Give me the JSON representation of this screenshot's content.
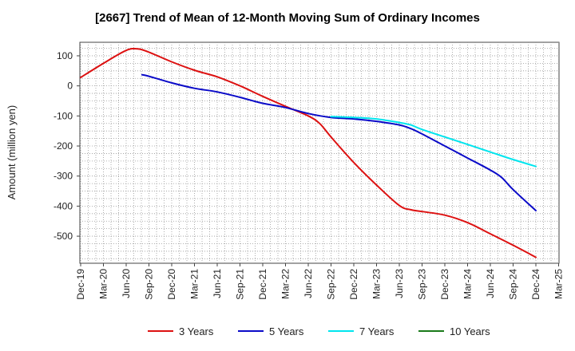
{
  "chart_data": {
    "type": "line",
    "title": "[2667]  Trend of Mean of 12-Month Moving Sum of Ordinary Incomes",
    "xlabel": "",
    "ylabel": "Amount (million yen)",
    "ylim": [
      -590,
      145
    ],
    "yticks": [
      100,
      0,
      -100,
      -200,
      -300,
      -400,
      -500
    ],
    "grid": true,
    "legend_position": "bottom",
    "categories": [
      "Dec-19",
      "Mar-20",
      "Jun-20",
      "Sep-20",
      "Dec-20",
      "Mar-21",
      "Jun-21",
      "Sep-21",
      "Dec-21",
      "Mar-22",
      "Jun-22",
      "Sep-22",
      "Dec-22",
      "Mar-23",
      "Jun-23",
      "Sep-23",
      "Dec-23",
      "Mar-24",
      "Jun-24",
      "Sep-24",
      "Dec-24",
      "Mar-25"
    ],
    "series": [
      {
        "name": "3 Years",
        "color": "#dd1111",
        "points": [
          [
            0,
            28
          ],
          [
            1,
            75
          ],
          [
            2,
            118
          ],
          [
            2.5,
            123
          ],
          [
            3,
            112
          ],
          [
            4,
            80
          ],
          [
            5,
            52
          ],
          [
            6,
            30
          ],
          [
            7,
            0
          ],
          [
            8,
            -35
          ],
          [
            9,
            -68
          ],
          [
            10,
            -100
          ],
          [
            10.5,
            -125
          ],
          [
            11,
            -170
          ],
          [
            12,
            -255
          ],
          [
            13,
            -330
          ],
          [
            14,
            -398
          ],
          [
            14.5,
            -412
          ],
          [
            15,
            -418
          ],
          [
            16,
            -430
          ],
          [
            17,
            -455
          ],
          [
            18,
            -492
          ],
          [
            19,
            -530
          ],
          [
            20,
            -570
          ]
        ]
      },
      {
        "name": "5 Years",
        "color": "#0a0ac8",
        "points": [
          [
            2.7,
            37
          ],
          [
            3,
            32
          ],
          [
            4,
            10
          ],
          [
            5,
            -8
          ],
          [
            6,
            -20
          ],
          [
            7,
            -38
          ],
          [
            8,
            -58
          ],
          [
            9,
            -72
          ],
          [
            10,
            -92
          ],
          [
            11,
            -105
          ],
          [
            12,
            -110
          ],
          [
            13,
            -118
          ],
          [
            14,
            -130
          ],
          [
            14.5,
            -142
          ],
          [
            15,
            -160
          ],
          [
            16,
            -200
          ],
          [
            17,
            -240
          ],
          [
            18,
            -280
          ],
          [
            18.5,
            -305
          ],
          [
            19,
            -345
          ],
          [
            20,
            -415
          ]
        ]
      },
      {
        "name": "7 Years",
        "color": "#00e5ee",
        "points": [
          [
            11,
            -102
          ],
          [
            12,
            -105
          ],
          [
            13,
            -110
          ],
          [
            14,
            -122
          ],
          [
            14.5,
            -130
          ],
          [
            15,
            -145
          ],
          [
            16,
            -170
          ],
          [
            17,
            -195
          ],
          [
            18,
            -220
          ],
          [
            19,
            -245
          ],
          [
            20,
            -268
          ]
        ]
      },
      {
        "name": "10 Years",
        "color": "#1a7a1a",
        "points": []
      }
    ]
  }
}
